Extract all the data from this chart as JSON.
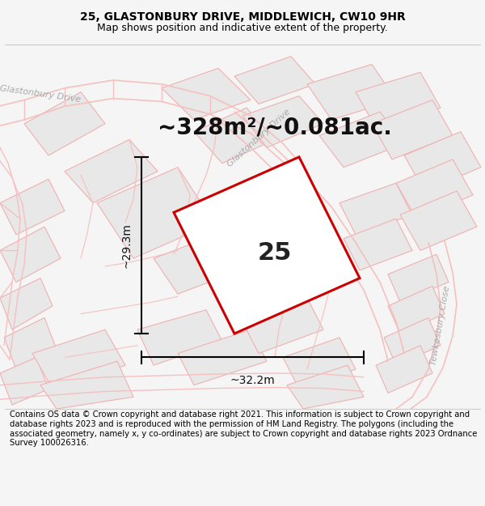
{
  "title": "25, GLASTONBURY DRIVE, MIDDLEWICH, CW10 9HR",
  "subtitle": "Map shows position and indicative extent of the property.",
  "area_label": "~328m²/~0.081ac.",
  "plot_number": "25",
  "dim_horiz": "~32.2m",
  "dim_vert": "~29.3m",
  "footer": "Contains OS data © Crown copyright and database right 2021. This information is subject to Crown copyright and database rights 2023 and is reproduced with the permission of HM Land Registry. The polygons (including the associated geometry, namely x, y co-ordinates) are subject to Crown copyright and database rights 2023 Ordnance Survey 100026316.",
  "bg_color": "#f5f5f5",
  "map_bg": "#ffffff",
  "road_color": "#f5c0c0",
  "road_lw": 1.0,
  "plot_color": "#cc0000",
  "block_fill": "#e8e8e8",
  "block_edge": "#f0b0b0",
  "title_fontsize": 10,
  "subtitle_fontsize": 9,
  "area_fontsize": 20,
  "number_fontsize": 22,
  "dim_fontsize": 10,
  "footer_fontsize": 7.2,
  "road_label_color": "#aaaaaa",
  "road_label_size": 8
}
